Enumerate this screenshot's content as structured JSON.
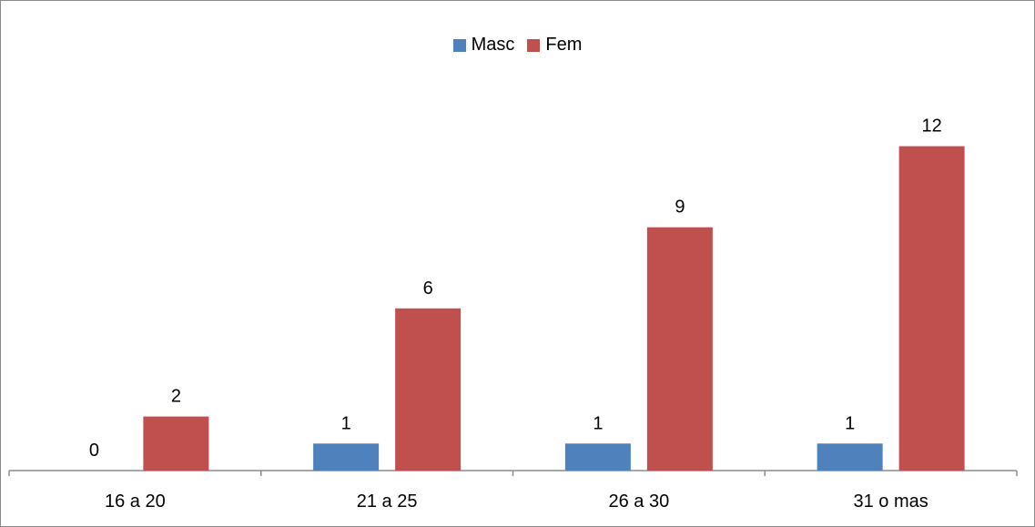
{
  "chart_data": {
    "type": "bar",
    "categories": [
      "16 a 20",
      "21 a 25",
      "26 a 30",
      "31 o mas"
    ],
    "series": [
      {
        "name": "Masc",
        "values": [
          0,
          1,
          1,
          1
        ],
        "color": "#4F81BD"
      },
      {
        "name": "Fem",
        "values": [
          2,
          6,
          9,
          12
        ],
        "color": "#C0504D"
      }
    ],
    "data_labels": true,
    "legend_position": "top",
    "grid": false,
    "ylim": [
      0,
      13
    ]
  }
}
